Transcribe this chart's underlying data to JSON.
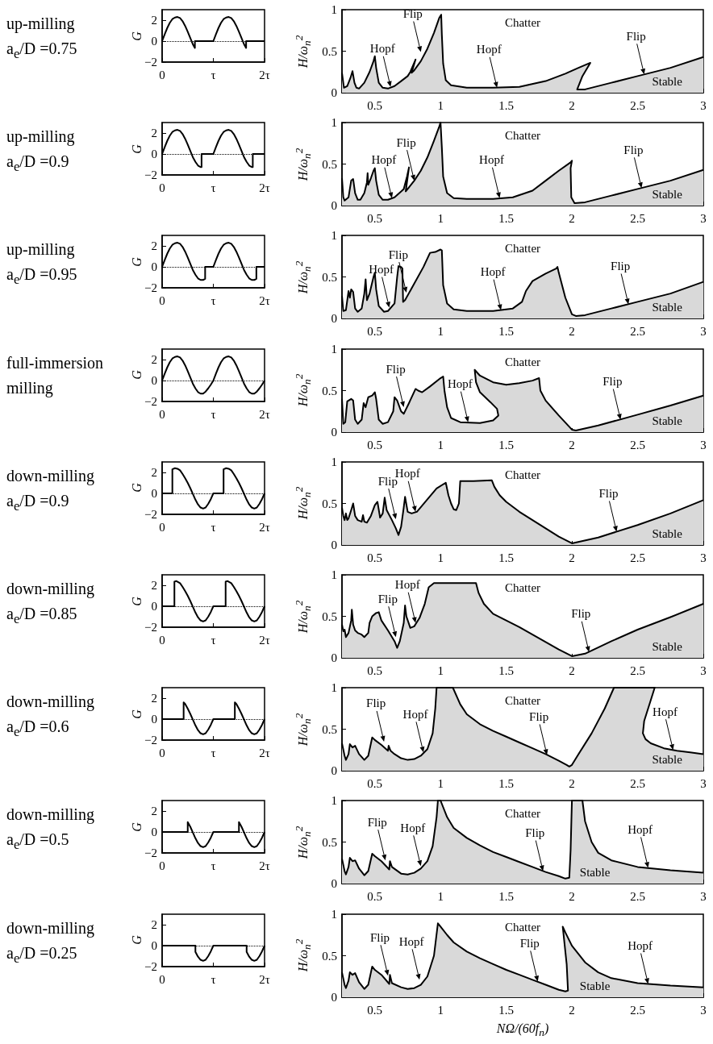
{
  "chart_data": [
    {
      "type": "line",
      "title": "up-milling",
      "subtitle": "a$_{e}$/D =0.75",
      "ylabel": "G",
      "color": "#000000",
      "xlim": [
        0,
        2
      ],
      "ylim": [
        -2,
        3
      ],
      "yticks": [
        -2,
        0,
        2
      ],
      "xticks": [
        {
          "value": 0,
          "label": "0"
        },
        {
          "value": 1,
          "label": "τ"
        },
        {
          "value": 2,
          "label": "2τ"
        }
      ],
      "ref_lines": [
        {
          "axis": "y",
          "value": 0,
          "line_style": "dotted"
        }
      ],
      "x": [
        0,
        0.05,
        0.1,
        0.15,
        0.2,
        0.25,
        0.3,
        0.35,
        0.4,
        0.45,
        0.5,
        0.55,
        0.6,
        0.64,
        0.64,
        1,
        1.05,
        1.1,
        1.15,
        1.2,
        1.25,
        1.3,
        1.35,
        1.4,
        1.45,
        1.5,
        1.55,
        1.6,
        1.64,
        1.64,
        2
      ],
      "values": [
        0,
        0.65,
        1.25,
        1.75,
        2.1,
        2.25,
        2.3,
        2.2,
        1.9,
        1.45,
        0.9,
        0.3,
        -0.3,
        -0.65,
        0,
        0,
        0.65,
        1.25,
        1.75,
        2.1,
        2.25,
        2.3,
        2.2,
        1.9,
        1.45,
        0.9,
        0.3,
        -0.3,
        -0.65,
        0,
        0
      ]
    },
    {
      "type": "area",
      "ylabel": "H/ω$_{n}$$^{2}$",
      "color": "#d9d9d9",
      "xlim": [
        0.25,
        3
      ],
      "xticks": [
        0.5,
        1,
        1.5,
        2,
        2.5,
        3
      ],
      "ylim": [
        0,
        1
      ],
      "yticks": [
        0,
        0.5,
        1
      ],
      "x": [
        0.25,
        0.265,
        0.29,
        0.315,
        0.33,
        0.345,
        0.36,
        0.38,
        0.42,
        0.46,
        0.49,
        0.5,
        0.51,
        0.53,
        0.56,
        0.6,
        0.65,
        0.7,
        0.75,
        0.77,
        0.81,
        0.78,
        0.8,
        0.85,
        0.9,
        0.95,
        0.99,
        1.005,
        1.01,
        1.02,
        1.04,
        1.08,
        1.2,
        1.4,
        1.6,
        1.8,
        1.95,
        2.05,
        2.14,
        2.08,
        2.04,
        2.1,
        2.3,
        2.5,
        2.75,
        3
      ],
      "values": [
        0.24,
        0.06,
        0.08,
        0.18,
        0.26,
        0.12,
        0.06,
        0.05,
        0.12,
        0.25,
        0.38,
        0.44,
        0.3,
        0.12,
        0.06,
        0.05,
        0.08,
        0.14,
        0.2,
        0.25,
        0.4,
        0.24,
        0.27,
        0.38,
        0.53,
        0.72,
        0.9,
        0.94,
        0.7,
        0.35,
        0.15,
        0.09,
        0.06,
        0.06,
        0.07,
        0.14,
        0.23,
        0.3,
        0.36,
        0.2,
        0.04,
        0.04,
        0.12,
        0.2,
        0.3,
        0.43
      ],
      "annotations": [
        "Chatter",
        "Stable",
        {
          "text": "Flip",
          "x": 0.85,
          "y": 0.49
        },
        {
          "text": "Hopf",
          "x": 0.62,
          "y": 0.07
        },
        {
          "text": "Hopf",
          "x": 1.43,
          "y": 0.06
        },
        {
          "text": "Flip",
          "x": 2.55,
          "y": 0.22
        }
      ]
    },
    {
      "type": "line",
      "title": "up-milling",
      "subtitle": "a$_{e}$/D =0.9",
      "ylabel": "G",
      "color": "#000000",
      "xlim": [
        0,
        2
      ],
      "ylim": [
        -2,
        3
      ],
      "yticks": [
        -2,
        0,
        2
      ],
      "xticks": [
        {
          "value": 0,
          "label": "0"
        },
        {
          "value": 1,
          "label": "τ"
        },
        {
          "value": 2,
          "label": "2τ"
        }
      ],
      "ref_lines": [
        {
          "axis": "y",
          "value": 0,
          "line_style": "dotted"
        }
      ],
      "x": [
        0,
        0.05,
        0.1,
        0.15,
        0.2,
        0.25,
        0.3,
        0.35,
        0.4,
        0.45,
        0.5,
        0.55,
        0.6,
        0.65,
        0.7,
        0.75,
        0.77,
        0.77,
        1,
        1.05,
        1.1,
        1.15,
        1.2,
        1.25,
        1.3,
        1.35,
        1.4,
        1.45,
        1.5,
        1.55,
        1.6,
        1.65,
        1.7,
        1.75,
        1.77,
        1.77,
        2
      ],
      "values": [
        0,
        0.65,
        1.25,
        1.75,
        2.1,
        2.25,
        2.3,
        2.2,
        1.9,
        1.45,
        0.9,
        0.3,
        -0.3,
        -0.75,
        -1.1,
        -1.25,
        -1.25,
        0,
        0,
        0.65,
        1.25,
        1.75,
        2.1,
        2.25,
        2.3,
        2.2,
        1.9,
        1.45,
        0.9,
        0.3,
        -0.3,
        -0.75,
        -1.1,
        -1.25,
        -1.25,
        0,
        0
      ]
    },
    {
      "type": "area",
      "ylabel": "H/ω$_{n}$$^{2}$",
      "color": "#d9d9d9",
      "xlim": [
        0.25,
        3
      ],
      "xticks": [
        0.5,
        1,
        1.5,
        2,
        2.5,
        3
      ],
      "ylim": [
        0,
        1
      ],
      "yticks": [
        0,
        0.5,
        1
      ],
      "x": [
        0.25,
        0.26,
        0.27,
        0.3,
        0.32,
        0.335,
        0.35,
        0.37,
        0.39,
        0.42,
        0.44,
        0.445,
        0.45,
        0.47,
        0.49,
        0.5,
        0.51,
        0.53,
        0.56,
        0.6,
        0.65,
        0.7,
        0.72,
        0.745,
        0.76,
        0.735,
        0.76,
        0.8,
        0.85,
        0.9,
        0.95,
        0.99,
        1.0,
        1.01,
        1.02,
        1.05,
        1.1,
        1.2,
        1.4,
        1.55,
        1.7,
        1.8,
        1.9,
        1.99,
        2.0,
        1.99,
        1.995,
        2.02,
        2.1,
        2.3,
        2.5,
        2.75,
        3
      ],
      "values": [
        0.33,
        0.1,
        0.06,
        0.1,
        0.3,
        0.32,
        0.15,
        0.07,
        0.07,
        0.15,
        0.28,
        0.39,
        0.25,
        0.33,
        0.42,
        0.45,
        0.3,
        0.13,
        0.07,
        0.07,
        0.1,
        0.17,
        0.2,
        0.35,
        0.46,
        0.17,
        0.22,
        0.3,
        0.42,
        0.58,
        0.78,
        0.95,
        1.0,
        0.7,
        0.35,
        0.15,
        0.09,
        0.08,
        0.08,
        0.1,
        0.18,
        0.3,
        0.42,
        0.52,
        0.54,
        0.45,
        0.1,
        0.03,
        0.04,
        0.12,
        0.2,
        0.3,
        0.43
      ],
      "annotations": [
        "Chatter",
        "Stable",
        {
          "text": "Flip",
          "x": 0.8,
          "y": 0.3
        },
        {
          "text": "Hopf",
          "x": 0.63,
          "y": 0.09
        },
        {
          "text": "Hopf",
          "x": 1.45,
          "y": 0.09
        },
        {
          "text": "Flip",
          "x": 2.53,
          "y": 0.21
        }
      ]
    },
    {
      "type": "line",
      "title": "up-milling",
      "subtitle": "a$_{e}$/D =0.95",
      "ylabel": "G",
      "color": "#000000",
      "xlim": [
        0,
        2
      ],
      "ylim": [
        -2,
        3
      ],
      "yticks": [
        -2,
        0,
        2
      ],
      "xticks": [
        {
          "value": 0,
          "label": "0"
        },
        {
          "value": 1,
          "label": "τ"
        },
        {
          "value": 2,
          "label": "2τ"
        }
      ],
      "ref_lines": [
        {
          "axis": "y",
          "value": 0,
          "line_style": "dotted"
        }
      ],
      "x": [
        0,
        0.05,
        0.1,
        0.15,
        0.2,
        0.25,
        0.3,
        0.35,
        0.4,
        0.45,
        0.5,
        0.55,
        0.6,
        0.65,
        0.7,
        0.75,
        0.8,
        0.84,
        0.84,
        1,
        1.05,
        1.1,
        1.15,
        1.2,
        1.25,
        1.3,
        1.35,
        1.4,
        1.45,
        1.5,
        1.55,
        1.6,
        1.65,
        1.7,
        1.75,
        1.8,
        1.84,
        1.84,
        2
      ],
      "values": [
        0,
        0.65,
        1.25,
        1.75,
        2.1,
        2.25,
        2.3,
        2.2,
        1.9,
        1.45,
        0.9,
        0.3,
        -0.3,
        -0.75,
        -1.1,
        -1.25,
        -1.25,
        -1.15,
        0,
        0,
        0.65,
        1.25,
        1.75,
        2.1,
        2.25,
        2.3,
        2.2,
        1.9,
        1.45,
        0.9,
        0.3,
        -0.3,
        -0.75,
        -1.1,
        -1.25,
        -1.25,
        -1.15,
        0,
        0
      ]
    },
    {
      "type": "area",
      "ylabel": "H/ω$_{n}$$^{2}$",
      "color": "#d9d9d9",
      "xlim": [
        0.25,
        3
      ],
      "xticks": [
        0.5,
        1,
        1.5,
        2,
        2.5,
        3
      ],
      "ylim": [
        0,
        1
      ],
      "yticks": [
        0,
        0.5,
        1
      ],
      "x": [
        0.25,
        0.26,
        0.28,
        0.3,
        0.31,
        0.32,
        0.335,
        0.35,
        0.37,
        0.4,
        0.42,
        0.43,
        0.44,
        0.46,
        0.49,
        0.5,
        0.51,
        0.53,
        0.57,
        0.6,
        0.65,
        0.67,
        0.68,
        0.7,
        0.71,
        0.715,
        0.73,
        0.8,
        0.87,
        0.92,
        0.96,
        1.0,
        1.01,
        1.02,
        1.05,
        1.1,
        1.2,
        1.4,
        1.55,
        1.62,
        1.65,
        1.7,
        1.8,
        1.88,
        1.89,
        1.9,
        1.95,
        2.0,
        2.03,
        2.1,
        2.3,
        2.5,
        2.75,
        3
      ],
      "values": [
        0.27,
        0.09,
        0.1,
        0.33,
        0.25,
        0.35,
        0.32,
        0.12,
        0.08,
        0.12,
        0.3,
        0.47,
        0.22,
        0.3,
        0.5,
        0.55,
        0.35,
        0.15,
        0.08,
        0.09,
        0.18,
        0.5,
        0.63,
        0.62,
        0.6,
        0.2,
        0.22,
        0.42,
        0.62,
        0.79,
        0.8,
        0.83,
        0.82,
        0.4,
        0.18,
        0.11,
        0.09,
        0.09,
        0.12,
        0.2,
        0.33,
        0.45,
        0.54,
        0.6,
        0.62,
        0.55,
        0.25,
        0.05,
        0.03,
        0.04,
        0.12,
        0.2,
        0.3,
        0.44
      ],
      "annotations": [
        "Chatter",
        "Stable",
        {
          "text": "Hopf",
          "x": 0.61,
          "y": 0.13
        },
        {
          "text": "Flip",
          "x": 0.74,
          "y": 0.31
        },
        {
          "text": "Hopf",
          "x": 1.46,
          "y": 0.1
        },
        {
          "text": "Flip",
          "x": 2.43,
          "y": 0.17
        }
      ]
    },
    {
      "type": "line",
      "title": "full-immersion",
      "subtitle": "milling",
      "ylabel": "G",
      "color": "#000000",
      "xlim": [
        0,
        2
      ],
      "ylim": [
        -2,
        3
      ],
      "yticks": [
        -2,
        0,
        2
      ],
      "xticks": [
        {
          "value": 0,
          "label": "0"
        },
        {
          "value": 1,
          "label": "τ"
        },
        {
          "value": 2,
          "label": "2τ"
        }
      ],
      "ref_lines": [
        {
          "axis": "y",
          "value": 0,
          "line_style": "dotted"
        }
      ],
      "x": [
        0,
        0.05,
        0.1,
        0.15,
        0.2,
        0.25,
        0.3,
        0.35,
        0.4,
        0.45,
        0.5,
        0.55,
        0.6,
        0.65,
        0.7,
        0.75,
        0.8,
        0.85,
        0.9,
        0.95,
        1,
        1.05,
        1.1,
        1.15,
        1.2,
        1.25,
        1.3,
        1.35,
        1.4,
        1.45,
        1.5,
        1.55,
        1.6,
        1.65,
        1.7,
        1.75,
        1.8,
        1.85,
        1.9,
        1.95,
        2
      ],
      "values": [
        0,
        0.65,
        1.25,
        1.75,
        2.1,
        2.25,
        2.3,
        2.2,
        1.9,
        1.45,
        0.9,
        0.3,
        -0.3,
        -0.75,
        -1.1,
        -1.25,
        -1.25,
        -1.05,
        -0.75,
        -0.4,
        0,
        0.65,
        1.25,
        1.75,
        2.1,
        2.25,
        2.3,
        2.2,
        1.9,
        1.45,
        0.9,
        0.3,
        -0.3,
        -0.75,
        -1.1,
        -1.25,
        -1.25,
        -1.05,
        -0.75,
        -0.4,
        0
      ]
    },
    {
      "type": "area",
      "ylabel": "H/ω$_{n}$$^{2}$",
      "color": "#d9d9d9",
      "xlim": [
        0.25,
        3
      ],
      "xticks": [
        0.5,
        1,
        1.5,
        2,
        2.5,
        3
      ],
      "ylim": [
        0,
        1
      ],
      "yticks": [
        0,
        0.5,
        1
      ],
      "x": [
        0.25,
        0.26,
        0.275,
        0.29,
        0.3,
        0.32,
        0.335,
        0.35,
        0.37,
        0.4,
        0.415,
        0.43,
        0.45,
        0.48,
        0.5,
        0.51,
        0.53,
        0.56,
        0.6,
        0.64,
        0.65,
        0.67,
        0.7,
        0.72,
        0.76,
        0.81,
        0.83,
        0.86,
        0.92,
        1.0,
        1.02,
        1.03,
        1.05,
        1.08,
        1.15,
        1.3,
        1.4,
        1.44,
        1.43,
        1.38,
        1.3,
        1.27,
        1.26,
        1.3,
        1.4,
        1.5,
        1.6,
        1.7,
        1.75,
        1.76,
        1.8,
        1.9,
        2.0,
        2.03,
        2.2,
        2.5,
        2.75,
        3
      ],
      "values": [
        0.4,
        0.1,
        0.12,
        0.37,
        0.38,
        0.4,
        0.38,
        0.15,
        0.1,
        0.15,
        0.35,
        0.3,
        0.42,
        0.44,
        0.48,
        0.4,
        0.15,
        0.1,
        0.12,
        0.25,
        0.42,
        0.38,
        0.25,
        0.22,
        0.35,
        0.52,
        0.5,
        0.48,
        0.55,
        0.65,
        0.67,
        0.5,
        0.3,
        0.17,
        0.12,
        0.11,
        0.14,
        0.2,
        0.28,
        0.36,
        0.48,
        0.6,
        0.75,
        0.68,
        0.6,
        0.57,
        0.59,
        0.62,
        0.65,
        0.5,
        0.38,
        0.2,
        0.03,
        0.02,
        0.08,
        0.21,
        0.32,
        0.44
      ],
      "annotations": [
        "Chatter",
        "Stable",
        {
          "text": "Flip",
          "x": 0.72,
          "y": 0.3
        },
        {
          "text": "Hopf",
          "x": 1.21,
          "y": 0.12
        },
        {
          "text": "Flip",
          "x": 2.37,
          "y": 0.15
        }
      ]
    },
    {
      "type": "line",
      "title": "down-milling",
      "subtitle": "a$_{e}$/D =0.9",
      "ylabel": "G",
      "color": "#000000",
      "xlim": [
        0,
        2
      ],
      "ylim": [
        -2,
        3
      ],
      "yticks": [
        -2,
        0,
        2
      ],
      "xticks": [
        {
          "value": 0,
          "label": "0"
        },
        {
          "value": 1,
          "label": "τ"
        },
        {
          "value": 2,
          "label": "2τ"
        }
      ],
      "ref_lines": [
        {
          "axis": "y",
          "value": 0,
          "line_style": "dotted"
        }
      ],
      "x": [
        0,
        0.2,
        0.2,
        0.25,
        0.3,
        0.35,
        0.4,
        0.45,
        0.5,
        0.55,
        0.6,
        0.65,
        0.7,
        0.75,
        0.8,
        0.85,
        0.9,
        0.95,
        1,
        1.2,
        1.2,
        1.25,
        1.3,
        1.35,
        1.4,
        1.45,
        1.5,
        1.55,
        1.6,
        1.65,
        1.7,
        1.75,
        1.8,
        1.85,
        1.9,
        1.95,
        2
      ],
      "values": [
        0,
        0,
        2.3,
        2.4,
        2.35,
        2.2,
        1.85,
        1.45,
        1.0,
        0.5,
        -0.05,
        -0.6,
        -1.05,
        -1.35,
        -1.45,
        -1.35,
        -1.0,
        -0.55,
        0,
        0,
        2.3,
        2.4,
        2.35,
        2.2,
        1.85,
        1.45,
        1.0,
        0.5,
        -0.05,
        -0.6,
        -1.05,
        -1.35,
        -1.45,
        -1.35,
        -1.0,
        -0.55,
        0
      ]
    },
    {
      "type": "area",
      "ylabel": "H/ω$_{n}$$^{2}$",
      "color": "#d9d9d9",
      "xlim": [
        0.25,
        3
      ],
      "xticks": [
        0.5,
        1,
        1.5,
        2,
        2.5,
        3
      ],
      "ylim": [
        0,
        1
      ],
      "yticks": [
        0,
        0.5,
        1
      ],
      "x": [
        0.25,
        0.26,
        0.27,
        0.28,
        0.29,
        0.3,
        0.32,
        0.335,
        0.35,
        0.37,
        0.4,
        0.41,
        0.42,
        0.44,
        0.47,
        0.5,
        0.52,
        0.54,
        0.56,
        0.575,
        0.59,
        0.63,
        0.66,
        0.68,
        0.7,
        0.72,
        0.73,
        0.75,
        0.78,
        0.82,
        0.9,
        0.97,
        1.04,
        1.06,
        1.08,
        1.1,
        1.12,
        1.14,
        1.15,
        1.25,
        1.39,
        1.41,
        1.45,
        1.5,
        1.6,
        1.7,
        1.8,
        1.9,
        2.0,
        2.2,
        2.5,
        2.75,
        3
      ],
      "values": [
        0.45,
        0.35,
        0.3,
        0.38,
        0.3,
        0.32,
        0.42,
        0.5,
        0.35,
        0.3,
        0.28,
        0.36,
        0.28,
        0.27,
        0.35,
        0.48,
        0.52,
        0.33,
        0.38,
        0.57,
        0.42,
        0.3,
        0.2,
        0.12,
        0.22,
        0.45,
        0.58,
        0.4,
        0.38,
        0.4,
        0.55,
        0.68,
        0.75,
        0.6,
        0.5,
        0.43,
        0.42,
        0.5,
        0.77,
        0.77,
        0.78,
        0.7,
        0.6,
        0.52,
        0.4,
        0.3,
        0.2,
        0.1,
        0.02,
        0.09,
        0.24,
        0.38,
        0.54
      ],
      "annotations": [
        "Chatter",
        "Stable",
        {
          "text": "Flip",
          "x": 0.66,
          "y": 0.31
        },
        {
          "text": "Hopf",
          "x": 0.81,
          "y": 0.4
        },
        {
          "text": "Flip",
          "x": 2.34,
          "y": 0.16
        }
      ]
    },
    {
      "type": "line",
      "title": "down-milling",
      "subtitle": "a$_{e}$/D =0.85",
      "ylabel": "G",
      "color": "#000000",
      "xlim": [
        0,
        2
      ],
      "ylim": [
        -2,
        3
      ],
      "yticks": [
        -2,
        0,
        2
      ],
      "xticks": [
        {
          "value": 0,
          "label": "0"
        },
        {
          "value": 1,
          "label": "τ"
        },
        {
          "value": 2,
          "label": "2τ"
        }
      ],
      "ref_lines": [
        {
          "axis": "y",
          "value": 0,
          "line_style": "dotted"
        }
      ],
      "x": [
        0,
        0.24,
        0.24,
        0.28,
        0.35,
        0.4,
        0.45,
        0.5,
        0.55,
        0.6,
        0.65,
        0.7,
        0.75,
        0.8,
        0.85,
        0.9,
        0.95,
        1,
        1.24,
        1.24,
        1.28,
        1.35,
        1.4,
        1.45,
        1.5,
        1.55,
        1.6,
        1.65,
        1.7,
        1.75,
        1.8,
        1.85,
        1.9,
        1.95,
        2
      ],
      "values": [
        0,
        0,
        2.35,
        2.4,
        2.2,
        1.85,
        1.45,
        1.0,
        0.5,
        -0.05,
        -0.6,
        -1.05,
        -1.35,
        -1.45,
        -1.35,
        -1.0,
        -0.55,
        0,
        0,
        2.35,
        2.4,
        2.2,
        1.85,
        1.45,
        1.0,
        0.5,
        -0.05,
        -0.6,
        -1.05,
        -1.35,
        -1.45,
        -1.35,
        -1.0,
        -0.55,
        0
      ]
    },
    {
      "type": "area",
      "ylabel": "H/ω$_{n}$$^{2}$",
      "color": "#d9d9d9",
      "xlim": [
        0.25,
        3
      ],
      "xticks": [
        0.5,
        1,
        1.5,
        2,
        2.5,
        3
      ],
      "ylim": [
        0,
        1
      ],
      "yticks": [
        0,
        0.5,
        1
      ],
      "x": [
        0.25,
        0.26,
        0.27,
        0.28,
        0.3,
        0.32,
        0.325,
        0.335,
        0.35,
        0.37,
        0.4,
        0.42,
        0.45,
        0.46,
        0.48,
        0.51,
        0.53,
        0.55,
        0.6,
        0.65,
        0.67,
        0.69,
        0.72,
        0.73,
        0.74,
        0.77,
        0.8,
        0.84,
        0.88,
        0.91,
        0.95,
        1.1,
        1.27,
        1.29,
        1.33,
        1.4,
        1.5,
        1.6,
        1.7,
        1.8,
        1.9,
        2.0,
        2.1,
        2.3,
        2.5,
        2.75,
        3
      ],
      "values": [
        0.4,
        0.32,
        0.34,
        0.25,
        0.3,
        0.45,
        0.58,
        0.4,
        0.33,
        0.3,
        0.28,
        0.25,
        0.3,
        0.42,
        0.5,
        0.54,
        0.55,
        0.45,
        0.33,
        0.2,
        0.12,
        0.2,
        0.42,
        0.63,
        0.5,
        0.36,
        0.38,
        0.48,
        0.65,
        0.85,
        0.9,
        0.9,
        0.9,
        0.78,
        0.65,
        0.53,
        0.45,
        0.37,
        0.28,
        0.19,
        0.1,
        0.02,
        0.05,
        0.2,
        0.34,
        0.49,
        0.65
      ],
      "annotations": [
        "Chatter",
        "Stable",
        {
          "text": "Flip",
          "x": 0.66,
          "y": 0.25
        },
        {
          "text": "Hopf",
          "x": 0.81,
          "y": 0.42
        },
        {
          "text": "Flip",
          "x": 2.13,
          "y": 0.07
        }
      ]
    },
    {
      "type": "line",
      "title": "down-milling",
      "subtitle": "a$_{e}$/D =0.6",
      "ylabel": "G",
      "color": "#000000",
      "xlim": [
        0,
        2
      ],
      "ylim": [
        -2,
        3
      ],
      "yticks": [
        -2,
        0,
        2
      ],
      "xticks": [
        {
          "value": 0,
          "label": "0"
        },
        {
          "value": 1,
          "label": "τ"
        },
        {
          "value": 2,
          "label": "2τ"
        }
      ],
      "ref_lines": [
        {
          "axis": "y",
          "value": 0,
          "line_style": "dotted"
        }
      ],
      "x": [
        0,
        0.42,
        0.42,
        0.45,
        0.5,
        0.55,
        0.6,
        0.65,
        0.7,
        0.75,
        0.8,
        0.85,
        0.9,
        0.95,
        1,
        1.42,
        1.42,
        1.45,
        1.5,
        1.55,
        1.6,
        1.65,
        1.7,
        1.75,
        1.8,
        1.85,
        1.9,
        1.95,
        2
      ],
      "values": [
        0,
        0,
        1.6,
        1.45,
        1.0,
        0.5,
        -0.05,
        -0.6,
        -1.05,
        -1.35,
        -1.45,
        -1.35,
        -1.0,
        -0.55,
        0,
        0,
        1.6,
        1.45,
        1.0,
        0.5,
        -0.05,
        -0.6,
        -1.05,
        -1.35,
        -1.45,
        -1.35,
        -1.0,
        -0.55,
        0
      ]
    },
    {
      "type": "area",
      "ylabel": "H/ω$_{n}$$^{2}$",
      "color": "#d9d9d9",
      "xlim": [
        0.25,
        3
      ],
      "xticks": [
        0.5,
        1,
        1.5,
        2,
        2.5,
        3
      ],
      "ylim": [
        0,
        1
      ],
      "yticks": [
        0,
        0.5,
        1
      ],
      "x": [
        0.25,
        0.27,
        0.28,
        0.3,
        0.31,
        0.33,
        0.35,
        0.38,
        0.42,
        0.45,
        0.48,
        0.5,
        0.55,
        0.6,
        0.605,
        0.62,
        0.65,
        0.7,
        0.75,
        0.8,
        0.85,
        0.9,
        0.94,
        0.96,
        0.97,
        1.094,
        1.15,
        1.2,
        1.3,
        1.4,
        1.5,
        1.6,
        1.7,
        1.8,
        1.9,
        1.96,
        1.98,
        2.0,
        2.05,
        2.15,
        2.25,
        2.32,
        2.63,
        2.6,
        2.55,
        2.54,
        2.56,
        2.6,
        2.7,
        2.8,
        2.9,
        3
      ],
      "values": [
        0.33,
        0.18,
        0.13,
        0.2,
        0.32,
        0.28,
        0.3,
        0.2,
        0.13,
        0.18,
        0.4,
        0.37,
        0.31,
        0.24,
        0.3,
        0.24,
        0.2,
        0.15,
        0.13,
        0.14,
        0.18,
        0.26,
        0.45,
        0.75,
        1.0,
        1.0,
        0.8,
        0.68,
        0.56,
        0.48,
        0.41,
        0.34,
        0.27,
        0.2,
        0.12,
        0.07,
        0.05,
        0.07,
        0.2,
        0.45,
        0.75,
        1.0,
        1.0,
        0.85,
        0.6,
        0.45,
        0.38,
        0.33,
        0.27,
        0.24,
        0.22,
        0.2
      ],
      "annotations": [
        "Chatter",
        "Stable",
        {
          "text": "Flip",
          "x": 0.57,
          "y": 0.35
        },
        {
          "text": "Hopf",
          "x": 0.87,
          "y": 0.22
        },
        {
          "text": "Flip",
          "x": 1.81,
          "y": 0.19
        },
        {
          "text": "Hopf",
          "x": 2.77,
          "y": 0.25
        }
      ]
    },
    {
      "type": "line",
      "title": "down-milling",
      "subtitle": "a$_{e}$/D =0.5",
      "ylabel": "G",
      "color": "#000000",
      "xlim": [
        0,
        2
      ],
      "ylim": [
        -2,
        3
      ],
      "yticks": [
        -2,
        0,
        2
      ],
      "xticks": [
        {
          "value": 0,
          "label": "0"
        },
        {
          "value": 1,
          "label": "τ"
        },
        {
          "value": 2,
          "label": "2τ"
        }
      ],
      "ref_lines": [
        {
          "axis": "y",
          "value": 0,
          "line_style": "dotted"
        }
      ],
      "x": [
        0,
        0.5,
        0.5,
        0.55,
        0.6,
        0.65,
        0.7,
        0.75,
        0.8,
        0.85,
        0.9,
        0.95,
        1,
        1.5,
        1.5,
        1.55,
        1.6,
        1.65,
        1.7,
        1.75,
        1.8,
        1.85,
        1.9,
        1.95,
        2
      ],
      "values": [
        0,
        0,
        0.95,
        0.5,
        -0.05,
        -0.6,
        -1.05,
        -1.35,
        -1.45,
        -1.35,
        -1.0,
        -0.55,
        0,
        0,
        0.95,
        0.5,
        -0.05,
        -0.6,
        -1.05,
        -1.35,
        -1.45,
        -1.35,
        -1.0,
        -0.55,
        0
      ]
    },
    {
      "type": "area",
      "ylabel": "H/ω$_{n}$$^{2}$",
      "color": "#d9d9d9",
      "xlim": [
        0.25,
        3
      ],
      "xticks": [
        0.5,
        1,
        1.5,
        2,
        2.5,
        3
      ],
      "ylim": [
        0,
        1
      ],
      "yticks": [
        0,
        0.5,
        1
      ],
      "x": [
        0.25,
        0.27,
        0.28,
        0.3,
        0.31,
        0.33,
        0.35,
        0.38,
        0.42,
        0.45,
        0.48,
        0.5,
        0.55,
        0.61,
        0.615,
        0.63,
        0.7,
        0.75,
        0.8,
        0.85,
        0.9,
        0.94,
        0.97,
        0.98,
        1.0,
        1.05,
        1.1,
        1.2,
        1.3,
        1.4,
        1.5,
        1.6,
        1.7,
        1.8,
        1.9,
        1.95,
        1.98,
        1.99,
        2.0,
        2.08,
        2.1,
        2.15,
        2.2,
        2.3,
        2.5,
        2.75,
        3
      ],
      "values": [
        0.3,
        0.15,
        0.11,
        0.2,
        0.31,
        0.27,
        0.28,
        0.18,
        0.1,
        0.15,
        0.36,
        0.33,
        0.27,
        0.17,
        0.27,
        0.2,
        0.12,
        0.11,
        0.13,
        0.18,
        0.27,
        0.45,
        0.8,
        1.0,
        1.0,
        0.8,
        0.67,
        0.55,
        0.46,
        0.38,
        0.32,
        0.26,
        0.2,
        0.14,
        0.09,
        0.06,
        0.07,
        0.4,
        1.0,
        1.0,
        0.75,
        0.5,
        0.37,
        0.28,
        0.2,
        0.16,
        0.13
      ],
      "annotations": [
        "Chatter",
        "Stable",
        {
          "text": "Flip",
          "x": 0.58,
          "y": 0.28
        },
        {
          "text": "Hopf",
          "x": 0.85,
          "y": 0.21
        },
        {
          "text": "Flip",
          "x": 1.78,
          "y": 0.15
        },
        {
          "text": "Hopf",
          "x": 2.58,
          "y": 0.19
        }
      ]
    },
    {
      "type": "line",
      "title": "down-milling",
      "subtitle": "a$_{e}$/D =0.25",
      "ylabel": "G",
      "color": "#000000",
      "xlim": [
        0,
        2
      ],
      "ylim": [
        -2,
        3
      ],
      "yticks": [
        -2,
        0,
        2
      ],
      "xticks": [
        {
          "value": 0,
          "label": "0"
        },
        {
          "value": 1,
          "label": "τ"
        },
        {
          "value": 2,
          "label": "2τ"
        }
      ],
      "ref_lines": [
        {
          "axis": "y",
          "value": 0,
          "line_style": "dotted"
        }
      ],
      "x": [
        0,
        0.65,
        0.65,
        0.7,
        0.75,
        0.8,
        0.85,
        0.9,
        0.95,
        1,
        1.65,
        1.65,
        1.7,
        1.75,
        1.8,
        1.85,
        1.9,
        1.95,
        2
      ],
      "values": [
        0,
        0,
        -0.6,
        -1.05,
        -1.35,
        -1.45,
        -1.35,
        -1.0,
        -0.55,
        0,
        0,
        -0.6,
        -1.05,
        -1.35,
        -1.45,
        -1.35,
        -1.0,
        -0.55,
        0
      ]
    },
    {
      "type": "area",
      "ylabel": "H/ω$_{n}$$^{2}$",
      "xlabel": "NΩ/(60f$_{n}$)",
      "color": "#d9d9d9",
      "xlim": [
        0.25,
        3
      ],
      "xticks": [
        0.5,
        1,
        1.5,
        2,
        2.5,
        3
      ],
      "ylim": [
        0,
        1
      ],
      "yticks": [
        0,
        0.5,
        1
      ],
      "x": [
        0.25,
        0.27,
        0.28,
        0.3,
        0.31,
        0.33,
        0.35,
        0.38,
        0.42,
        0.45,
        0.48,
        0.5,
        0.55,
        0.61,
        0.615,
        0.63,
        0.7,
        0.75,
        0.8,
        0.85,
        0.9,
        0.95,
        0.98,
        1.0,
        1.05,
        1.1,
        1.2,
        1.3,
        1.4,
        1.5,
        1.6,
        1.7,
        1.8,
        1.9,
        1.95,
        1.97,
        1.96,
        1.93,
        1.95,
        2.0,
        2.1,
        2.2,
        2.3,
        2.5,
        2.75,
        3
      ],
      "values": [
        0.3,
        0.15,
        0.11,
        0.2,
        0.3,
        0.27,
        0.29,
        0.18,
        0.1,
        0.15,
        0.37,
        0.33,
        0.27,
        0.16,
        0.27,
        0.17,
        0.12,
        0.1,
        0.11,
        0.15,
        0.25,
        0.5,
        0.89,
        0.85,
        0.75,
        0.66,
        0.55,
        0.47,
        0.4,
        0.33,
        0.27,
        0.21,
        0.15,
        0.09,
        0.07,
        0.08,
        0.4,
        0.85,
        0.78,
        0.62,
        0.42,
        0.3,
        0.23,
        0.17,
        0.14,
        0.12
      ],
      "annotations": [
        "Chatter",
        "Stable",
        {
          "text": "Flip",
          "x": 0.6,
          "y": 0.26
        },
        {
          "text": "Hopf",
          "x": 0.84,
          "y": 0.21
        },
        {
          "text": "Flip",
          "x": 1.74,
          "y": 0.19
        },
        {
          "text": "Hopf",
          "x": 2.58,
          "y": 0.16
        }
      ]
    }
  ]
}
